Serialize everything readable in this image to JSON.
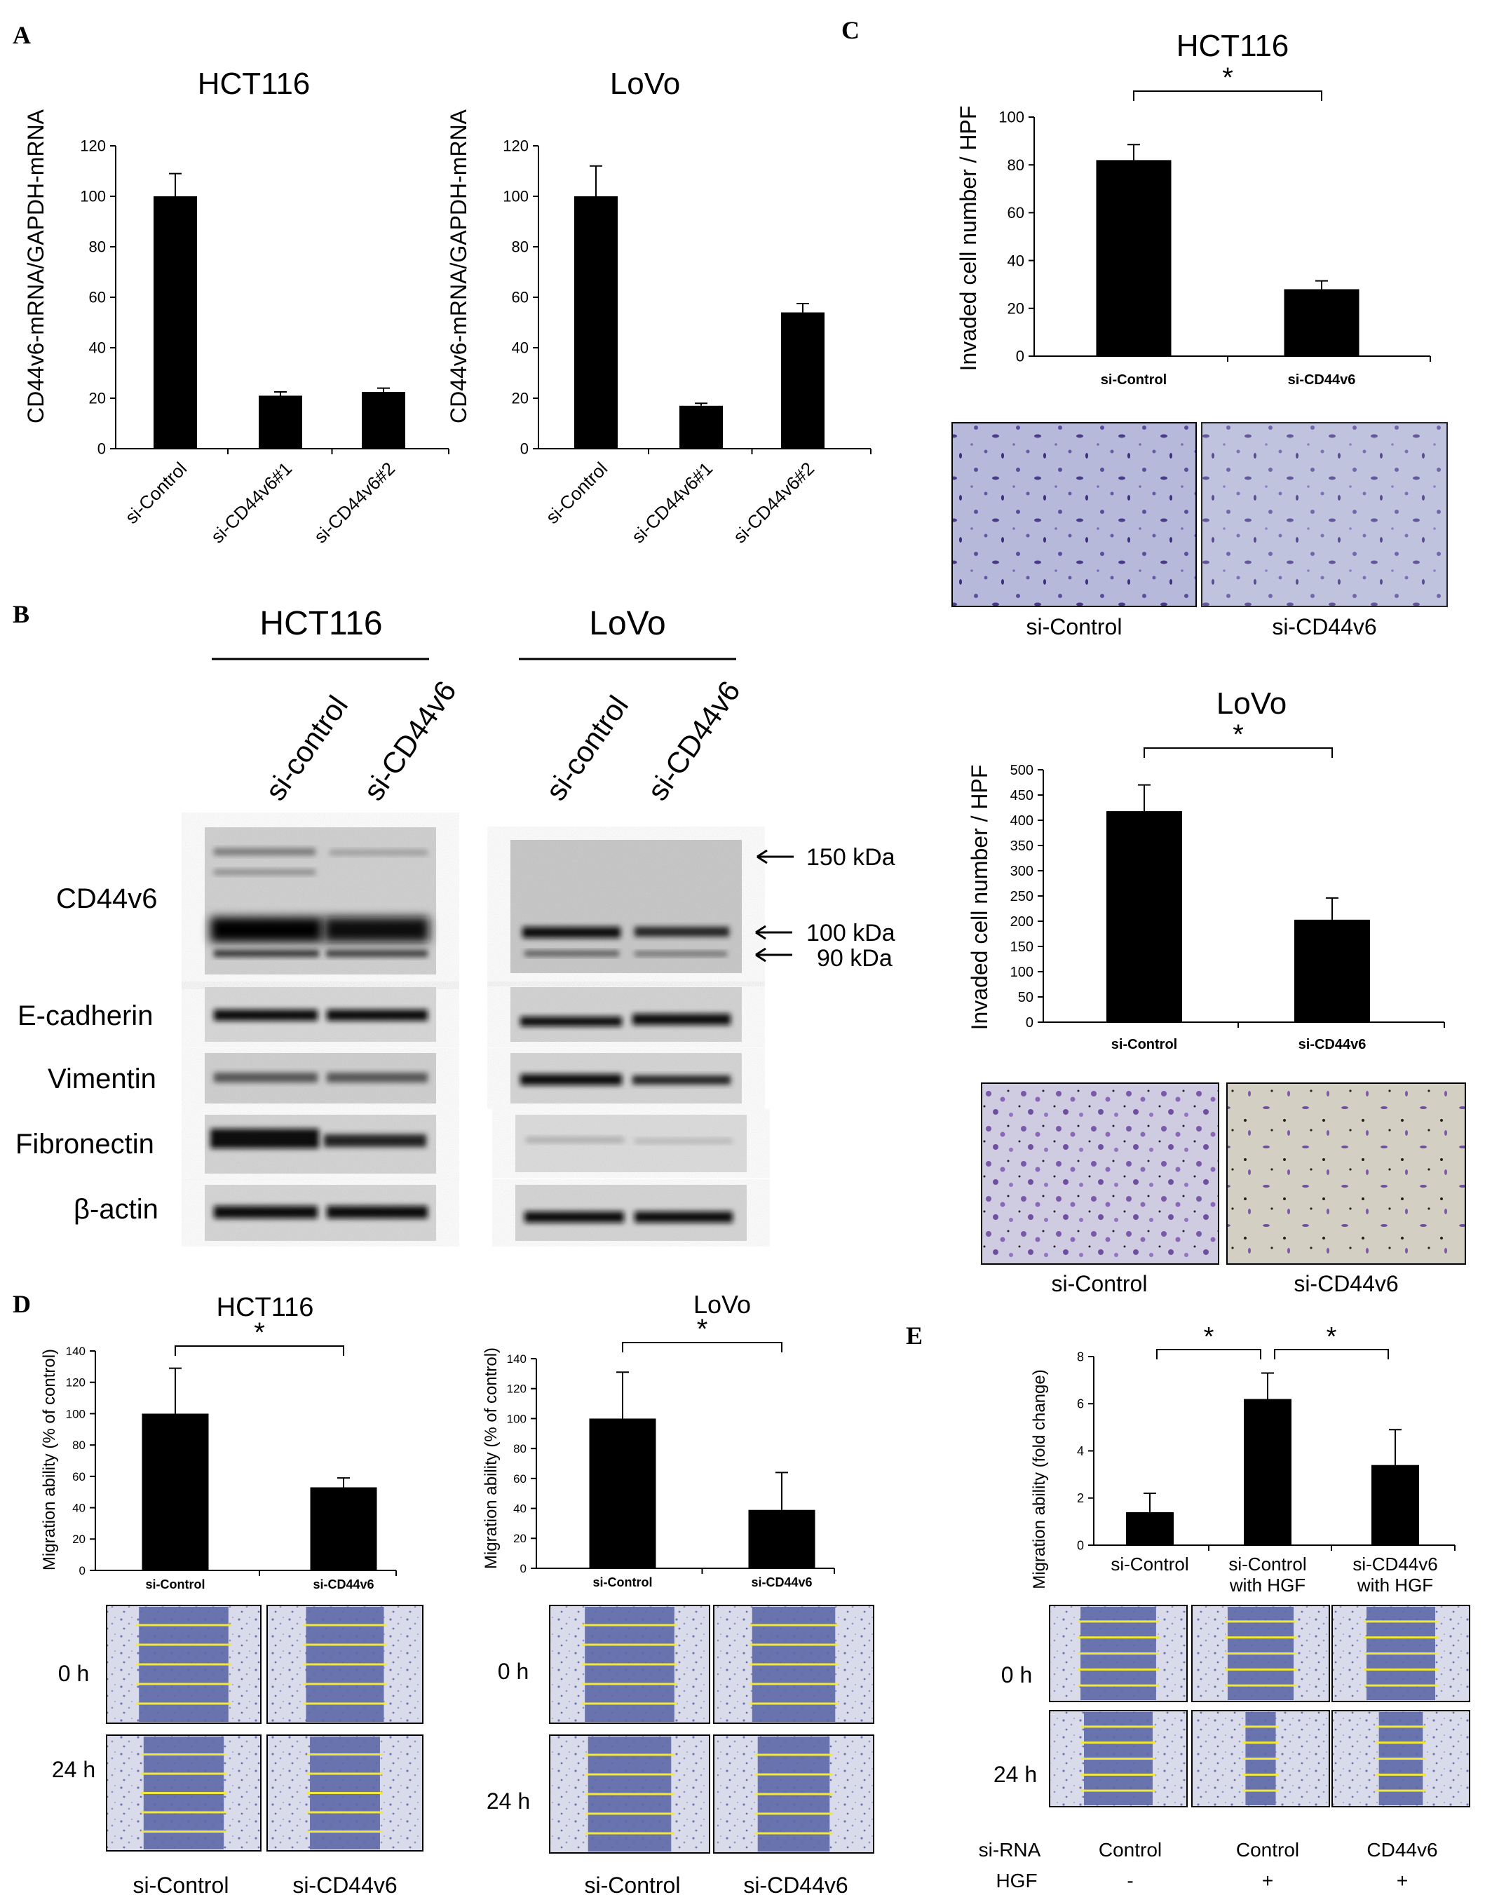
{
  "panels": {
    "A": {
      "letter": "A",
      "charts": [
        {
          "title": "HCT116",
          "ylabel": "CD44v6-mRNA/GAPDH-mRNA"
        },
        {
          "title": "LoVo",
          "ylabel": "CD44v6-mRNA/GAPDH-mRNA"
        }
      ]
    },
    "B": {
      "letter": "B",
      "groups": [
        {
          "title": "HCT116",
          "lanes": [
            "si-control",
            "si-CD44v6"
          ]
        },
        {
          "title": "LoVo",
          "lanes": [
            "si-control",
            "si-CD44v6"
          ]
        }
      ],
      "rows": [
        "CD44v6",
        "E-cadherin",
        "Vimentin",
        "Fibronectin",
        "β-actin"
      ],
      "markers": [
        "150 kDa",
        "100 kDa",
        "90 kDa"
      ]
    },
    "C": {
      "letter": "C",
      "charts": [
        {
          "title": "HCT116",
          "ylabel": "Invaded cell number / HPF",
          "star": "*",
          "images": [
            "si-Control",
            "si-CD44v6"
          ]
        },
        {
          "title": "LoVo",
          "ylabel": "Invaded cell number / HPF",
          "star": "*",
          "images": [
            "si-Control",
            "si-CD44v6"
          ]
        }
      ]
    },
    "D": {
      "letter": "D",
      "charts": [
        {
          "title": "HCT116",
          "ylabel": "Migration ability (% of control)",
          "star": "*",
          "rows": [
            "0 h",
            "24 h"
          ],
          "cols": [
            "si-Control",
            "si-CD44v6"
          ]
        },
        {
          "title": "LoVo",
          "ylabel": "Migration ability (% of control)",
          "star": "*",
          "rows": [
            "0 h",
            "24 h"
          ],
          "cols": [
            "si-Control",
            "si-CD44v6"
          ]
        }
      ]
    },
    "E": {
      "letter": "E",
      "ylabel": "Migration ability (fold change)",
      "stars": [
        "*",
        "*"
      ],
      "cat_lines": [
        [
          "si-Control"
        ],
        [
          "si-Control",
          "with HGF"
        ],
        [
          "si-CD44v6",
          "with HGF"
        ]
      ],
      "rows": [
        "0 h",
        "24 h"
      ],
      "footer": {
        "row1_label": "si-RNA",
        "row1": [
          "Control",
          "Control",
          "CD44v6"
        ],
        "row2_label": "HGF",
        "row2": [
          "-",
          "+",
          "+"
        ]
      }
    }
  },
  "chart_data": [
    {
      "id": "A-HCT116",
      "type": "bar",
      "title": "HCT116",
      "ylabel": "CD44v6-mRNA/GAPDH-mRNA",
      "categories": [
        "si-Control",
        "si-CD44v6#1",
        "si-CD44v6#2"
      ],
      "values": [
        100,
        21,
        22.5
      ],
      "errors": [
        9,
        1.5,
        1.5
      ],
      "ylim": [
        0,
        120
      ],
      "yticks": [
        0,
        20,
        40,
        60,
        80,
        100,
        120
      ],
      "grid": false,
      "bar_color": "#000000"
    },
    {
      "id": "A-LoVo",
      "type": "bar",
      "title": "LoVo",
      "ylabel": "CD44v6-mRNA/GAPDH-mRNA",
      "categories": [
        "si-Control",
        "si-CD44v6#1",
        "si-CD44v6#2"
      ],
      "values": [
        100,
        17,
        54
      ],
      "errors": [
        12,
        1,
        3.5
      ],
      "ylim": [
        0,
        120
      ],
      "yticks": [
        0,
        20,
        40,
        60,
        80,
        100,
        120
      ],
      "grid": false,
      "bar_color": "#000000"
    },
    {
      "id": "C-HCT116",
      "type": "bar",
      "title": "HCT116",
      "ylabel": "Invaded cell number / HPF",
      "categories": [
        "si-Control",
        "si-CD44v6"
      ],
      "values": [
        82,
        28
      ],
      "errors": [
        6.5,
        3.5
      ],
      "ylim": [
        0,
        100
      ],
      "yticks": [
        0,
        20,
        40,
        60,
        80,
        100
      ],
      "grid": false,
      "bar_color": "#000000"
    },
    {
      "id": "C-LoVo",
      "type": "bar",
      "title": "LoVo",
      "ylabel": "Invaded cell number / HPF",
      "categories": [
        "si-Control",
        "si-CD44v6"
      ],
      "values": [
        418,
        203
      ],
      "errors": [
        52,
        43
      ],
      "ylim": [
        0,
        500
      ],
      "yticks": [
        0,
        50,
        100,
        150,
        200,
        250,
        300,
        350,
        400,
        450,
        500
      ],
      "grid": false,
      "bar_color": "#000000"
    },
    {
      "id": "D-HCT116",
      "type": "bar",
      "title": "HCT116",
      "ylabel": "Migration ability (% of control)",
      "categories": [
        "si-Control",
        "si-CD44v6"
      ],
      "values": [
        100,
        53
      ],
      "errors": [
        29,
        6
      ],
      "ylim": [
        0,
        140
      ],
      "yticks": [
        0,
        20,
        40,
        60,
        80,
        100,
        120,
        140
      ],
      "grid": false,
      "bar_color": "#000000"
    },
    {
      "id": "D-LoVo",
      "type": "bar",
      "title": "LoVo",
      "ylabel": "Migration ability (% of control)",
      "categories": [
        "si-Control",
        "si-CD44v6"
      ],
      "values": [
        100,
        39
      ],
      "errors": [
        31,
        25
      ],
      "ylim": [
        0,
        140
      ],
      "yticks": [
        0,
        20,
        40,
        60,
        80,
        100,
        120,
        140
      ],
      "grid": false,
      "bar_color": "#000000"
    },
    {
      "id": "E",
      "type": "bar",
      "ylabel": "Migration ability (fold change)",
      "categories": [
        "si-Control",
        "si-Control with HGF",
        "si-CD44v6 with HGF"
      ],
      "values": [
        1.4,
        6.2,
        3.4
      ],
      "errors": [
        0.8,
        1.1,
        1.5
      ],
      "ylim": [
        0,
        8
      ],
      "yticks": [
        0,
        2,
        4,
        6,
        8
      ],
      "grid": false,
      "bar_color": "#000000"
    }
  ]
}
